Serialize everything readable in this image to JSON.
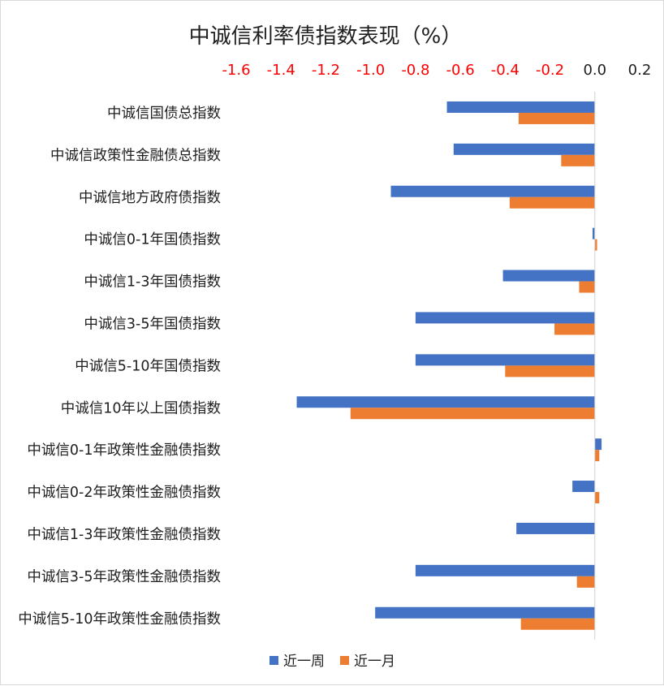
{
  "chart_data": {
    "type": "bar",
    "orientation": "horizontal",
    "title": "中诚信利率债指数表现（%）",
    "categories": [
      "中诚信国债总指数",
      "中诚信政策性金融债总指数",
      "中诚信地方政府债指数",
      "中诚信0-1年国债指数",
      "中诚信1-3年国债指数",
      "中诚信3-5年国债指数",
      "中诚信5-10年国债指数",
      "中诚信10年以上国债指数",
      "中诚信0-1年政策性金融债指数",
      "中诚信0-2年政策性金融债指数",
      "中诚信1-3年政策性金融债指数",
      "中诚信3-5年政策性金融债指数",
      "中诚信5-10年政策性金融债指数"
    ],
    "series": [
      {
        "name": "近一周",
        "color": "#4472c4",
        "values": [
          -0.66,
          -0.63,
          -0.91,
          -0.01,
          -0.41,
          -0.8,
          -0.8,
          -1.33,
          0.03,
          -0.1,
          -0.35,
          -0.8,
          -0.98
        ]
      },
      {
        "name": "近一月",
        "color": "#ed7d31",
        "values": [
          -0.34,
          -0.15,
          -0.38,
          0.01,
          -0.07,
          -0.18,
          -0.4,
          -1.09,
          0.02,
          0.02,
          0.0,
          -0.08,
          -0.33
        ]
      }
    ],
    "xticks": [
      "-1.6",
      "-1.4",
      "-1.2",
      "-1.0",
      "-0.8",
      "-0.6",
      "-0.4",
      "-0.2",
      "0.0",
      "0.2"
    ],
    "xlim": [
      -1.6,
      0.2
    ],
    "x_axis_position": "top",
    "negative_tick_color": "#ff0000",
    "positive_tick_color": "#1f1f1f",
    "grid": false,
    "legend_position": "bottom"
  }
}
